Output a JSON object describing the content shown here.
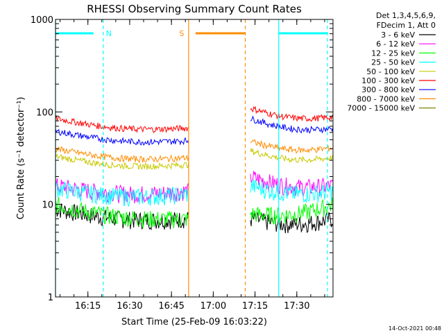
{
  "chart_data": {
    "type": "line",
    "title": "RHESSI Observing Summary Count Rates",
    "xlabel": "Start Time (25-Feb-09 16:03:22)",
    "ylabel": "Count Rate (s⁻¹ detector⁻¹)",
    "y_scale": "log",
    "ylim": [
      1,
      1000
    ],
    "xlim": [
      "16:03:22",
      "17:43:00"
    ],
    "x_ticks": [
      "16:15",
      "16:30",
      "16:45",
      "17:00",
      "17:15",
      "17:30"
    ],
    "y_ticks": [
      "1",
      "10",
      "100",
      "1000"
    ],
    "legend_header": [
      "Det 1,3,4,5,6,9,",
      "FDecim 1, Att 0"
    ],
    "legend_position": "right",
    "timestamp": "14-Oct-2021 00:48",
    "segments": [
      {
        "start": "16:03:22",
        "end": "16:51:10"
      },
      {
        "start": "17:13:20",
        "end": "17:43:00"
      }
    ],
    "series": [
      {
        "name": "3 - 6 keV",
        "color": "#000000",
        "values": [
          [
            9,
            7
          ],
          [
            7,
            7
          ]
        ]
      },
      {
        "name": "6 - 12 keV",
        "color": "#ff00ff",
        "values": [
          [
            16,
            14
          ],
          [
            20,
            16
          ]
        ]
      },
      {
        "name": "12 - 25 keV",
        "color": "#00ff00",
        "values": [
          [
            10,
            7
          ],
          [
            8,
            10
          ]
        ]
      },
      {
        "name": "25 - 50 keV",
        "color": "#00ffff",
        "values": [
          [
            15,
            13
          ],
          [
            16,
            14
          ]
        ]
      },
      {
        "name": "50 - 100 keV",
        "color": "#c8c800",
        "values": [
          [
            33,
            27
          ],
          [
            38,
            32
          ]
        ]
      },
      {
        "name": "100 - 300 keV",
        "color": "#ff0000",
        "values": [
          [
            85,
            67
          ],
          [
            110,
            88
          ]
        ]
      },
      {
        "name": "300 - 800 keV",
        "color": "#0000ff",
        "values": [
          [
            62,
            49
          ],
          [
            85,
            66
          ]
        ]
      },
      {
        "name": "800 - 7000 keV",
        "color": "#ff8c00",
        "values": [
          [
            40,
            32
          ],
          [
            48,
            41
          ]
        ]
      },
      {
        "name": "7000 - 15000 keV",
        "color": "#808000",
        "values": []
      }
    ],
    "annotations": [
      {
        "label": "N",
        "color": "#00ffff",
        "start": "16:03:22",
        "end": "16:20:30"
      },
      {
        "label": "S",
        "color": "#ff8c00",
        "start": "16:51:10",
        "end": "17:11:30"
      },
      {
        "label": "",
        "color": "#00ffff",
        "start": "17:23:30",
        "end": "17:41:00"
      }
    ]
  }
}
